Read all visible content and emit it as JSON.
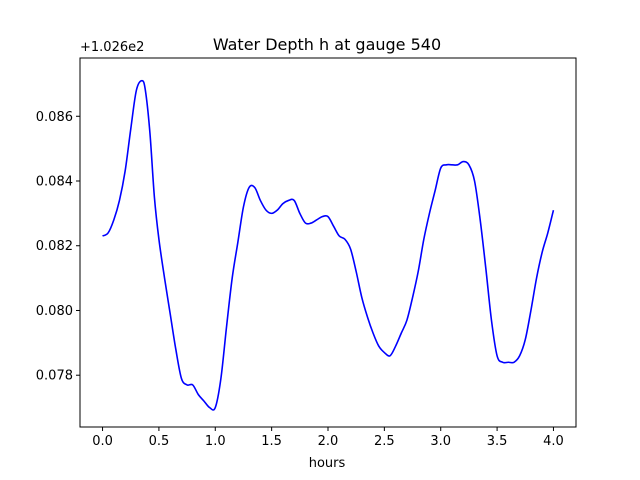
{
  "chart_data": {
    "type": "line",
    "title": "Water Depth h at gauge 540",
    "xlabel": "hours",
    "ylabel": "",
    "y_offset_label": "+1.026e2",
    "xlim": [
      -0.2,
      4.2
    ],
    "ylim": [
      0.0764,
      0.0878
    ],
    "x_ticks": [
      0.0,
      0.5,
      1.0,
      1.5,
      2.0,
      2.5,
      3.0,
      3.5,
      4.0
    ],
    "x_tick_labels": [
      "0.0",
      "0.5",
      "1.0",
      "1.5",
      "2.0",
      "2.5",
      "3.0",
      "3.5",
      "4.0"
    ],
    "y_ticks": [
      0.078,
      0.08,
      0.082,
      0.084,
      0.086
    ],
    "y_tick_labels": [
      "0.078",
      "0.080",
      "0.082",
      "0.084",
      "0.086"
    ],
    "grid": false,
    "line_color": "#0000ff",
    "series": [
      {
        "x": [
          0.0,
          0.05,
          0.1,
          0.15,
          0.2,
          0.25,
          0.3,
          0.35,
          0.38,
          0.42,
          0.46,
          0.5,
          0.55,
          0.6,
          0.65,
          0.7,
          0.75,
          0.8,
          0.85,
          0.9,
          0.95,
          1.0,
          1.05,
          1.1,
          1.15,
          1.2,
          1.25,
          1.3,
          1.35,
          1.4,
          1.45,
          1.5,
          1.55,
          1.6,
          1.65,
          1.7,
          1.75,
          1.8,
          1.85,
          1.9,
          1.95,
          2.0,
          2.05,
          2.1,
          2.15,
          2.2,
          2.25,
          2.3,
          2.35,
          2.4,
          2.45,
          2.5,
          2.55,
          2.6,
          2.65,
          2.7,
          2.75,
          2.8,
          2.85,
          2.9,
          2.95,
          3.0,
          3.05,
          3.1,
          3.15,
          3.2,
          3.25,
          3.3,
          3.35,
          3.4,
          3.45,
          3.5,
          3.55,
          3.6,
          3.65,
          3.7,
          3.75,
          3.8,
          3.85,
          3.9,
          3.95,
          4.0
        ],
        "y": [
          0.0823,
          0.0824,
          0.0828,
          0.0834,
          0.0843,
          0.0856,
          0.0868,
          0.0871,
          0.0868,
          0.0855,
          0.0835,
          0.0822,
          0.081,
          0.0799,
          0.0788,
          0.0779,
          0.0777,
          0.0777,
          0.0774,
          0.0772,
          0.077,
          0.077,
          0.0779,
          0.0795,
          0.081,
          0.0821,
          0.0832,
          0.0838,
          0.0838,
          0.0834,
          0.0831,
          0.083,
          0.0831,
          0.0833,
          0.0834,
          0.0834,
          0.083,
          0.0827,
          0.0827,
          0.0828,
          0.0829,
          0.0829,
          0.0826,
          0.0823,
          0.0822,
          0.0819,
          0.0812,
          0.0804,
          0.0798,
          0.0793,
          0.0789,
          0.0787,
          0.0786,
          0.0789,
          0.0793,
          0.0797,
          0.0804,
          0.0812,
          0.0822,
          0.083,
          0.0837,
          0.0844,
          0.0845,
          0.0845,
          0.0845,
          0.0846,
          0.0845,
          0.084,
          0.0828,
          0.0813,
          0.0797,
          0.0786,
          0.0784,
          0.0784,
          0.0784,
          0.0786,
          0.0791,
          0.08,
          0.081,
          0.0818,
          0.0824,
          0.0831
        ]
      }
    ]
  }
}
